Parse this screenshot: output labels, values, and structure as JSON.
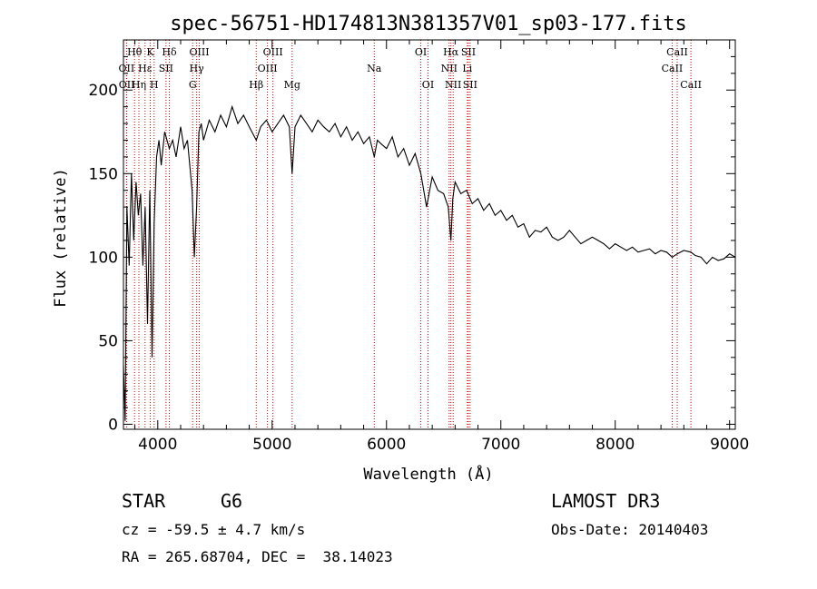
{
  "chart_data": {
    "type": "line",
    "title": "spec-56751-HD174813N381357V01_sp03-177.fits",
    "xlabel": "Wavelength (Å)",
    "ylabel": "Flux (relative)",
    "xlim": [
      3700,
      9050
    ],
    "ylim": [
      -3,
      230
    ],
    "xticks": [
      4000,
      5000,
      6000,
      7000,
      8000,
      9000
    ],
    "yticks": [
      0,
      50,
      100,
      150,
      200
    ],
    "series": [
      {
        "name": "spectrum",
        "x": [
          3700,
          3715,
          3730,
          3750,
          3770,
          3790,
          3810,
          3830,
          3850,
          3870,
          3890,
          3910,
          3930,
          3950,
          3968,
          3990,
          4010,
          4030,
          4060,
          4101,
          4130,
          4160,
          4200,
          4230,
          4260,
          4300,
          4320,
          4340,
          4360,
          4380,
          4400,
          4450,
          4500,
          4550,
          4600,
          4650,
          4700,
          4750,
          4800,
          4861,
          4900,
          4950,
          5000,
          5050,
          5100,
          5150,
          5175,
          5200,
          5250,
          5300,
          5350,
          5400,
          5450,
          5500,
          5550,
          5600,
          5650,
          5700,
          5750,
          5800,
          5850,
          5893,
          5920,
          5950,
          6000,
          6050,
          6100,
          6150,
          6200,
          6250,
          6300,
          6350,
          6400,
          6450,
          6500,
          6540,
          6563,
          6580,
          6600,
          6650,
          6700,
          6750,
          6800,
          6850,
          6900,
          6950,
          7000,
          7050,
          7100,
          7150,
          7200,
          7250,
          7300,
          7350,
          7400,
          7450,
          7500,
          7550,
          7600,
          7650,
          7700,
          7750,
          7800,
          7850,
          7900,
          7950,
          8000,
          8050,
          8100,
          8150,
          8200,
          8250,
          8300,
          8350,
          8400,
          8450,
          8498,
          8542,
          8600,
          8662,
          8700,
          8750,
          8800,
          8850,
          8900,
          8950,
          9000,
          9050
        ],
        "y": [
          35,
          2,
          130,
          95,
          150,
          110,
          145,
          125,
          138,
          95,
          130,
          60,
          140,
          40,
          120,
          160,
          170,
          155,
          175,
          165,
          170,
          160,
          178,
          165,
          170,
          140,
          100,
          130,
          175,
          180,
          170,
          182,
          175,
          185,
          178,
          190,
          180,
          185,
          178,
          170,
          178,
          182,
          175,
          180,
          185,
          178,
          150,
          178,
          185,
          180,
          175,
          182,
          178,
          175,
          180,
          172,
          178,
          170,
          175,
          168,
          172,
          160,
          170,
          168,
          165,
          172,
          160,
          165,
          155,
          162,
          150,
          130,
          148,
          140,
          138,
          130,
          110,
          135,
          145,
          138,
          140,
          132,
          135,
          128,
          132,
          125,
          128,
          122,
          125,
          118,
          120,
          112,
          116,
          115,
          118,
          112,
          110,
          112,
          116,
          112,
          108,
          110,
          112,
          110,
          108,
          105,
          108,
          106,
          104,
          106,
          103,
          104,
          105,
          102,
          104,
          103,
          100,
          102,
          104,
          103,
          101,
          100,
          96,
          100,
          98,
          99,
          102,
          100
        ]
      }
    ],
    "line_markers": [
      {
        "label": "Hθ",
        "wl": 3797,
        "row": 0
      },
      {
        "label": "OII",
        "wl": 3727,
        "row": 1
      },
      {
        "label": "OII",
        "wl": 3729,
        "row": 2
      },
      {
        "label": "Hε",
        "wl": 3889,
        "row": 1
      },
      {
        "label": "Hη",
        "wl": 3835,
        "row": 2
      },
      {
        "label": "K",
        "wl": 3934,
        "row": 0
      },
      {
        "label": "H",
        "wl": 3968,
        "row": 2
      },
      {
        "label": "Hδ",
        "wl": 4101,
        "row": 0
      },
      {
        "label": "SII",
        "wl": 4072,
        "row": 1
      },
      {
        "label": "OIII",
        "wl": 4363,
        "row": 0
      },
      {
        "label": "Hγ",
        "wl": 4340,
        "row": 1
      },
      {
        "label": "G",
        "wl": 4305,
        "row": 2
      },
      {
        "label": "Hβ",
        "wl": 4861,
        "row": 2
      },
      {
        "label": "OIII",
        "wl": 5007,
        "row": 0
      },
      {
        "label": "OIII",
        "wl": 4959,
        "row": 1
      },
      {
        "label": "Mg",
        "wl": 5175,
        "row": 2
      },
      {
        "label": "Na",
        "wl": 5893,
        "row": 1
      },
      {
        "label": "OI",
        "wl": 6300,
        "row": 0
      },
      {
        "label": "OI",
        "wl": 6363,
        "row": 2
      },
      {
        "label": "Hα",
        "wl": 6563,
        "row": 0
      },
      {
        "label": "NII",
        "wl": 6548,
        "row": 1
      },
      {
        "label": "NII",
        "wl": 6583,
        "row": 2
      },
      {
        "label": "SII",
        "wl": 6716,
        "row": 0
      },
      {
        "label": "Li",
        "wl": 6707,
        "row": 1
      },
      {
        "label": "SII",
        "wl": 6731,
        "row": 2
      },
      {
        "label": "CaII",
        "wl": 8542,
        "row": 0
      },
      {
        "label": "CaII",
        "wl": 8498,
        "row": 1
      },
      {
        "label": "CaII",
        "wl": 8662,
        "row": 2
      }
    ],
    "colors": {
      "spectrum": "#000000",
      "markers": "#cc0000",
      "axes": "#000000"
    }
  },
  "info": {
    "object_class": "STAR",
    "subclass": "G6",
    "survey": "LAMOST DR3",
    "cz": "cz = -59.5 ± 4.7 km/s",
    "obs_date": "Obs-Date: 20140403",
    "coords": "RA = 265.68704, DEC =  38.14023"
  }
}
